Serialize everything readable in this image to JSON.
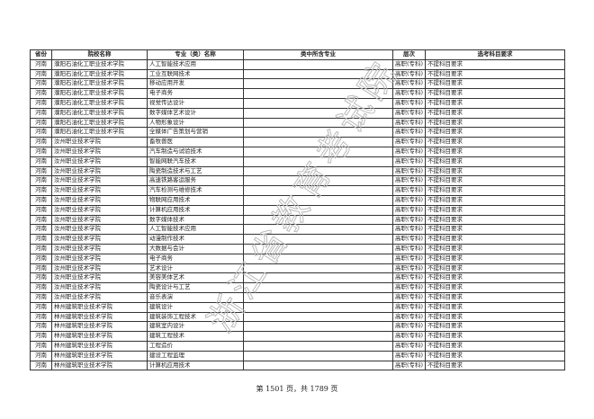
{
  "table": {
    "headers": [
      "省份",
      "院校名称",
      "专业（类）名称",
      "类中所含专业",
      "层次",
      "选考科目要求"
    ],
    "rows": [
      [
        "河南",
        "濮阳石油化工职业技术学院",
        "人工智能技术应用",
        "",
        "高职(专科)",
        "不提科目要求"
      ],
      [
        "河南",
        "濮阳石油化工职业技术学院",
        "工业互联网技术",
        "",
        "高职(专科)",
        "不提科目要求"
      ],
      [
        "河南",
        "濮阳石油化工职业技术学院",
        "移动应用开发",
        "",
        "高职(专科)",
        "不提科目要求"
      ],
      [
        "河南",
        "濮阳石油化工职业技术学院",
        "电子商务",
        "",
        "高职(专科)",
        "不提科目要求"
      ],
      [
        "河南",
        "濮阳石油化工职业技术学院",
        "视觉传达设计",
        "",
        "高职(专科)",
        "不提科目要求"
      ],
      [
        "河南",
        "濮阳石油化工职业技术学院",
        "数字媒体艺术设计",
        "",
        "高职(专科)",
        "不提科目要求"
      ],
      [
        "河南",
        "濮阳石油化工职业技术学院",
        "人物形象设计",
        "",
        "高职(专科)",
        "不提科目要求"
      ],
      [
        "河南",
        "濮阳石油化工职业技术学院",
        "全媒体广告策划与营销",
        "",
        "高职(专科)",
        "不提科目要求"
      ],
      [
        "河南",
        "汝州职业技术学院",
        "畜牧兽医",
        "",
        "高职(专科)",
        "不提科目要求"
      ],
      [
        "河南",
        "汝州职业技术学院",
        "汽车制造与试验技术",
        "",
        "高职(专科)",
        "不提科目要求"
      ],
      [
        "河南",
        "汝州职业技术学院",
        "智能网联汽车技术",
        "",
        "高职(专科)",
        "不提科目要求"
      ],
      [
        "河南",
        "汝州职业技术学院",
        "陶瓷制造技术与工艺",
        "",
        "高职(专科)",
        "不提科目要求"
      ],
      [
        "河南",
        "汝州职业技术学院",
        "高速铁路客运服务",
        "",
        "高职(专科)",
        "不提科目要求"
      ],
      [
        "河南",
        "汝州职业技术学院",
        "汽车检测与维修技术",
        "",
        "高职(专科)",
        "不提科目要求"
      ],
      [
        "河南",
        "汝州职业技术学院",
        "物联网应用技术",
        "",
        "高职(专科)",
        "不提科目要求"
      ],
      [
        "河南",
        "汝州职业技术学院",
        "计算机应用技术",
        "",
        "高职(专科)",
        "不提科目要求"
      ],
      [
        "河南",
        "汝州职业技术学院",
        "数字媒体技术",
        "",
        "高职(专科)",
        "不提科目要求"
      ],
      [
        "河南",
        "汝州职业技术学院",
        "人工智能技术应用",
        "",
        "高职(专科)",
        "不提科目要求"
      ],
      [
        "河南",
        "汝州职业技术学院",
        "动漫制作技术",
        "",
        "高职(专科)",
        "不提科目要求"
      ],
      [
        "河南",
        "汝州职业技术学院",
        "大数据与会计",
        "",
        "高职(专科)",
        "不提科目要求"
      ],
      [
        "河南",
        "汝州职业技术学院",
        "电子商务",
        "",
        "高职(专科)",
        "不提科目要求"
      ],
      [
        "河南",
        "汝州职业技术学院",
        "艺术设计",
        "",
        "高职(专科)",
        "不提科目要求"
      ],
      [
        "河南",
        "汝州职业技术学院",
        "美容美体艺术",
        "",
        "高职(专科)",
        "不提科目要求"
      ],
      [
        "河南",
        "汝州职业技术学院",
        "陶瓷设计与工艺",
        "",
        "高职(专科)",
        "不提科目要求"
      ],
      [
        "河南",
        "汝州职业技术学院",
        "音乐表演",
        "",
        "高职(专科)",
        "不提科目要求"
      ],
      [
        "河南",
        "林州建筑职业技术学院",
        "建筑设计",
        "",
        "高职(专科)",
        "不提科目要求"
      ],
      [
        "河南",
        "林州建筑职业技术学院",
        "建筑装饰工程技术",
        "",
        "高职(专科)",
        "不提科目要求"
      ],
      [
        "河南",
        "林州建筑职业技术学院",
        "建筑室内设计",
        "",
        "高职(专科)",
        "不提科目要求"
      ],
      [
        "河南",
        "林州建筑职业技术学院",
        "建筑工程技术",
        "",
        "高职(专科)",
        "不提科目要求"
      ],
      [
        "河南",
        "林州建筑职业技术学院",
        "工程造价",
        "",
        "高职(专科)",
        "不提科目要求"
      ],
      [
        "河南",
        "林州建筑职业技术学院",
        "建设工程监理",
        "",
        "高职(专科)",
        "不提科目要求"
      ],
      [
        "河南",
        "林州建筑职业技术学院",
        "计算机应用技术",
        "",
        "高职(专科)",
        "不提科目要求"
      ]
    ]
  },
  "watermark": "浙江省教育考试院",
  "footer": "第 1501 页，共 1789 页"
}
